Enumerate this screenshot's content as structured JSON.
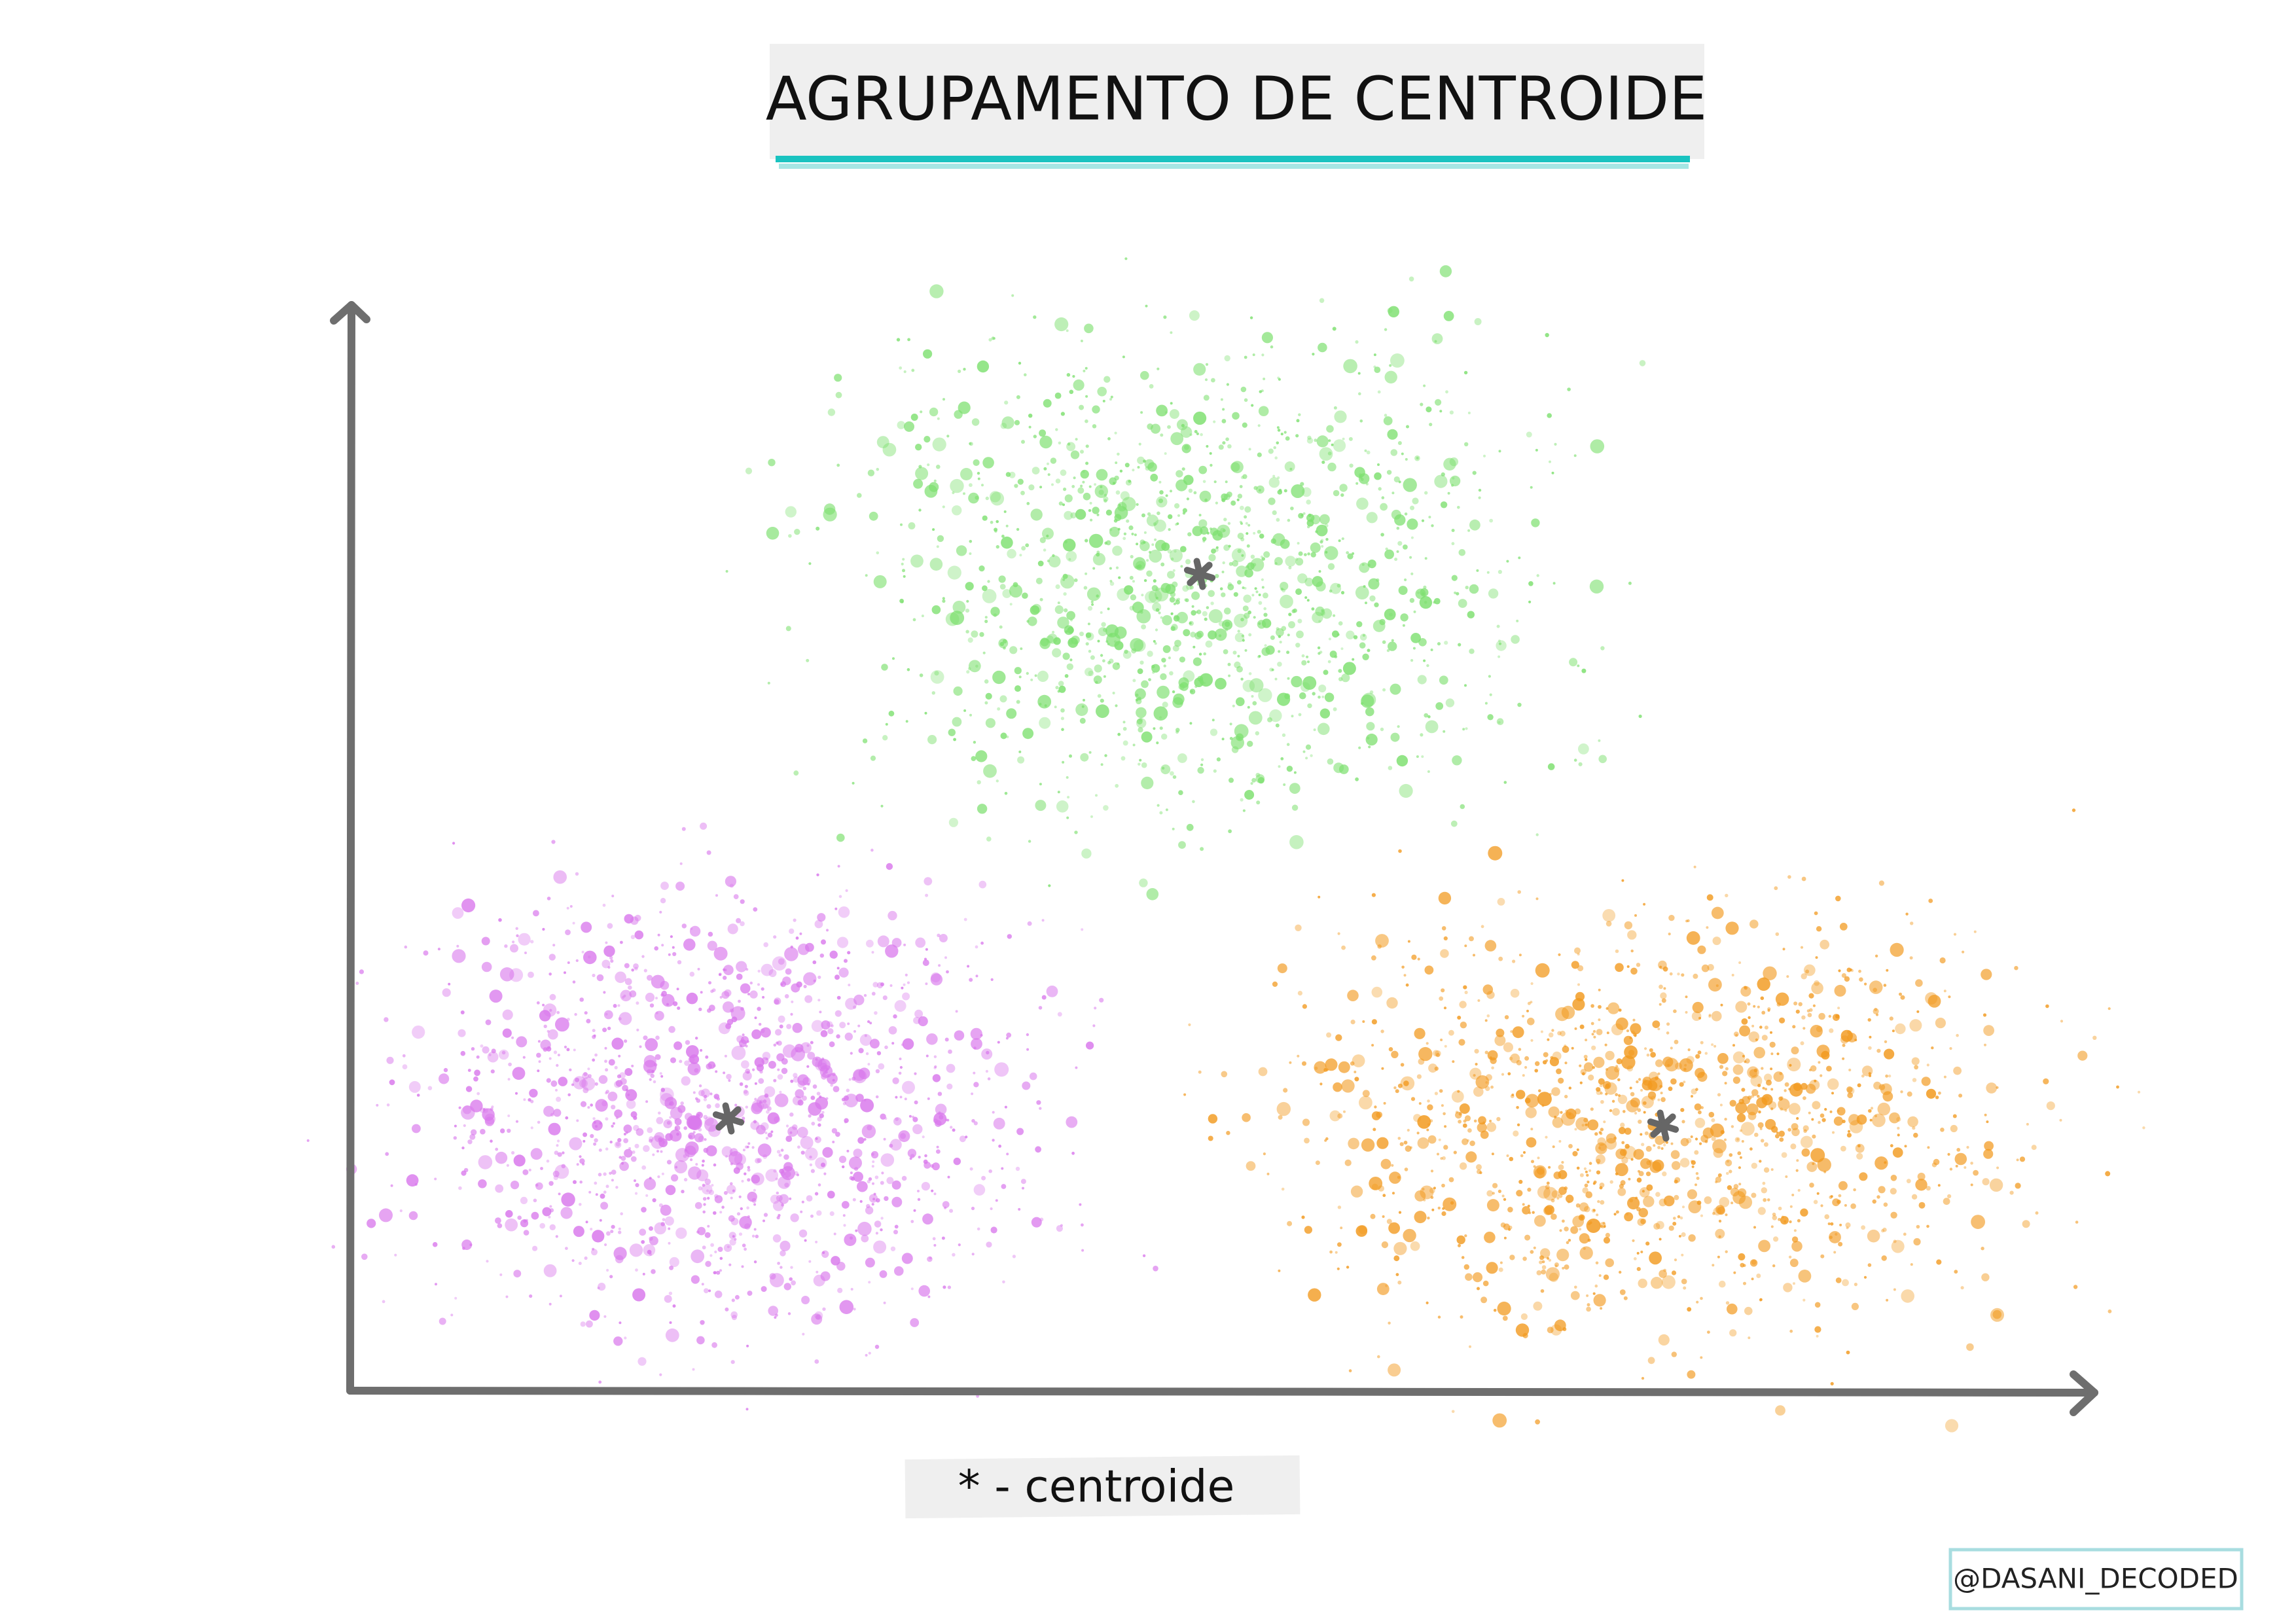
{
  "header": {
    "title": "AGRUPAMENTO DE CENTROIDE"
  },
  "legend": {
    "label": "* - centroide"
  },
  "footer": {
    "credit": "@DASANI_DECODED"
  }
}
